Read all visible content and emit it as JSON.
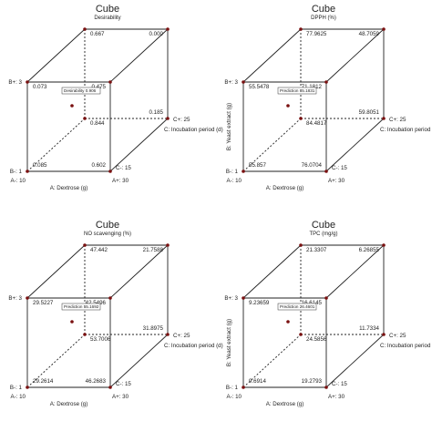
{
  "chart_data": [
    {
      "type": "cube",
      "title": "Cube",
      "subtitle": "Desirability",
      "axes": {
        "a": {
          "label": "A: Dextrose (g)",
          "low": "A-: 10",
          "high": "A+: 30"
        },
        "b": {
          "label": "",
          "low": "B-: 1",
          "high": "B+: 3"
        },
        "c": {
          "label": "C: Incubation period (d)",
          "low": "C-: 15",
          "high": "C+: 25"
        }
      },
      "vertices": {
        "lll": "0.085",
        "hll": "0.602",
        "lhl": "0.073",
        "hhl": "0.475",
        "llh": "0.844",
        "hlh": "0.185",
        "lhh": "0.667",
        "hhh": "0.000"
      },
      "prediction": "Desirability  0.906"
    },
    {
      "type": "cube",
      "title": "Cube",
      "subtitle": "DPPH (%)",
      "axes": {
        "a": {
          "label": "A: Dextrose (g)",
          "low": "A-: 10",
          "high": "A+: 30"
        },
        "b": {
          "label": "B: Yeast extract (g)",
          "low": "B-: 1",
          "high": "B+: 3"
        },
        "c": {
          "label": "C: Incubation period (d)",
          "low": "C-: 15",
          "high": "C+: 25"
        }
      },
      "vertices": {
        "lll": "55.857",
        "hll": "76.0704",
        "lhl": "55.5478",
        "hhl": "71.1812",
        "llh": "84.4817",
        "hlh": "59.8051",
        "lhh": "77.9625",
        "hhh": "48.7059"
      },
      "prediction": "Prediction  85.1831"
    },
    {
      "type": "cube",
      "title": "Cube",
      "subtitle": "NO scavenging (%)",
      "axes": {
        "a": {
          "label": "A: Dextrose (g)",
          "low": "A-: 10",
          "high": "A+: 30"
        },
        "b": {
          "label": "",
          "low": "B-: 1",
          "high": "B+: 3"
        },
        "c": {
          "label": "C: Incubation period (d)",
          "low": "C-: 15",
          "high": "C+: 25"
        }
      },
      "vertices": {
        "lll": "29.2614",
        "hll": "46.2683",
        "lhl": "29.5227",
        "hhl": "42.5496",
        "llh": "53.7006",
        "hlh": "31.8975",
        "lhh": "47.442",
        "hhh": "21.7588"
      },
      "prediction": "Prediction  55.1692"
    },
    {
      "type": "cube",
      "title": "Cube",
      "subtitle": "TPC (mg/g)",
      "axes": {
        "a": {
          "label": "A: Dextrose (g)",
          "low": "A-: 10",
          "high": "A+: 30"
        },
        "b": {
          "label": "B: Yeast extract (g)",
          "low": "B-: 1",
          "high": "B+: 3"
        },
        "c": {
          "label": "C: Incubation period (d)",
          "low": "C-: 15",
          "high": "C+: 25"
        }
      },
      "vertices": {
        "lll": "9.6914",
        "hll": "19.2793",
        "lhl": "9.23659",
        "hhl": "16.6145",
        "llh": "24.5856",
        "hlh": "11.7334",
        "lhh": "21.3307",
        "hhh": "6.26855"
      },
      "prediction": "Prediction  26.4601"
    }
  ]
}
